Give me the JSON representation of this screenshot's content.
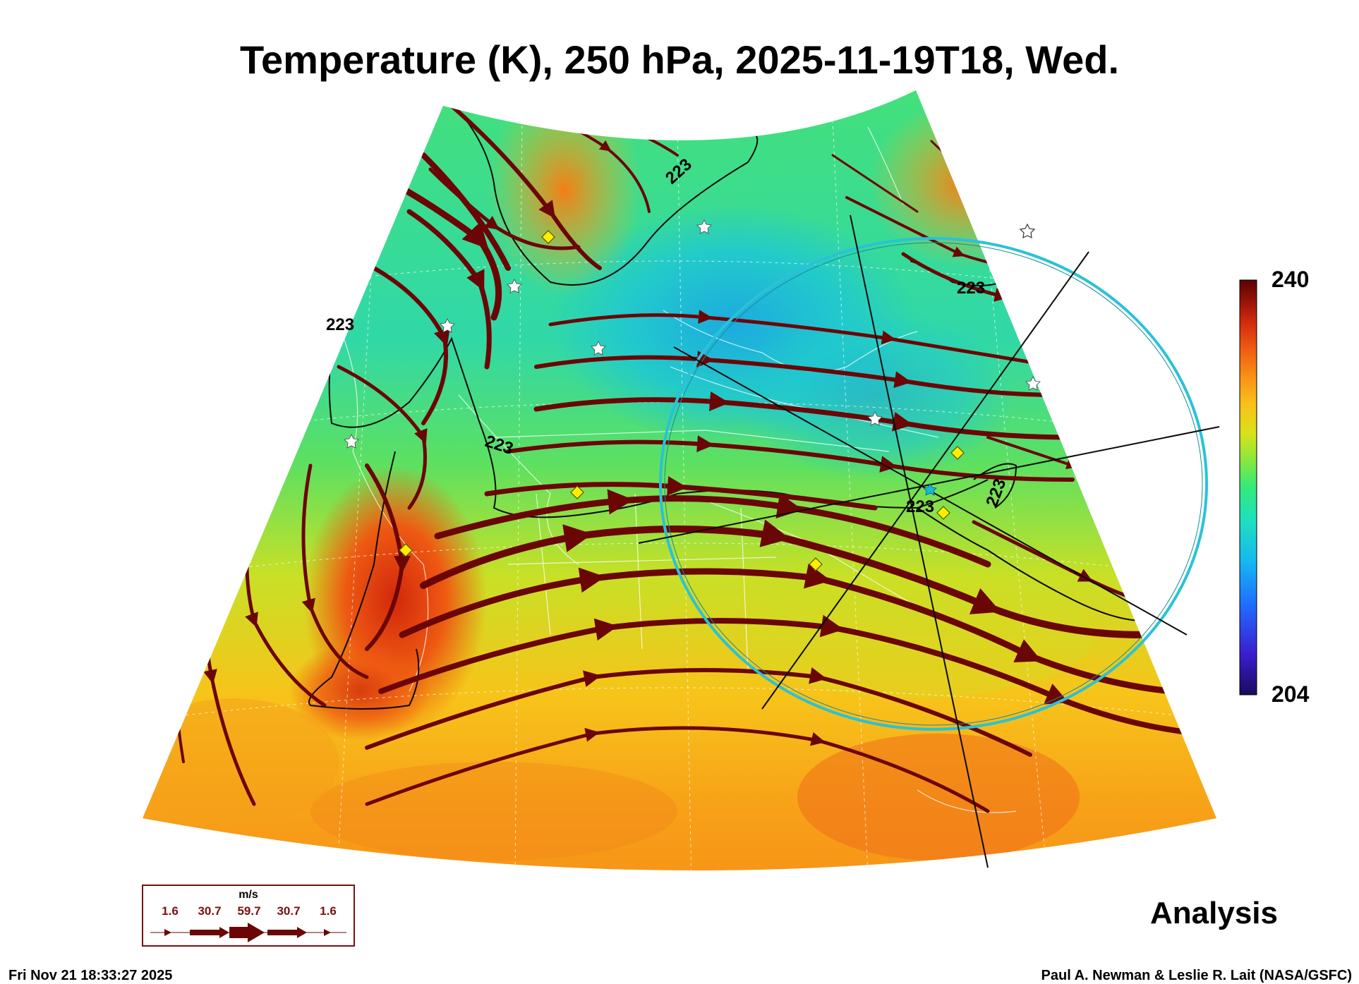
{
  "title": "Temperature (K), 250 hPa, 2025-11-19T18, Wed.",
  "colorbar": {
    "max_label": "240",
    "min_label": "204",
    "colors": [
      "#1c0a5c",
      "#3a1fd0",
      "#1f6fff",
      "#14b8f0",
      "#1ee0c0",
      "#33ea7a",
      "#8ee83a",
      "#d9e21a",
      "#f8c11a",
      "#f99616",
      "#f05e12",
      "#d02a0c",
      "#8a0e08",
      "#5a0404"
    ]
  },
  "contour_labels": [
    "223",
    "223",
    "223",
    "223",
    "223",
    "223"
  ],
  "legend": {
    "unit": "m/s",
    "values": [
      "1.6",
      "30.7",
      "59.7",
      "30.7",
      "1.6"
    ]
  },
  "analysis_label": "Analysis",
  "footer": {
    "timestamp": "Fri Nov 21 18:33:27 2025",
    "credit": "Paul A. Newman & Leslie R. Lait (NASA/GSFC)"
  },
  "markers": {
    "star_color": "#ffffff",
    "diamond_color": "#ffee00",
    "streamline_color": "#6b0606",
    "ring_color": "#2ac2d6"
  }
}
